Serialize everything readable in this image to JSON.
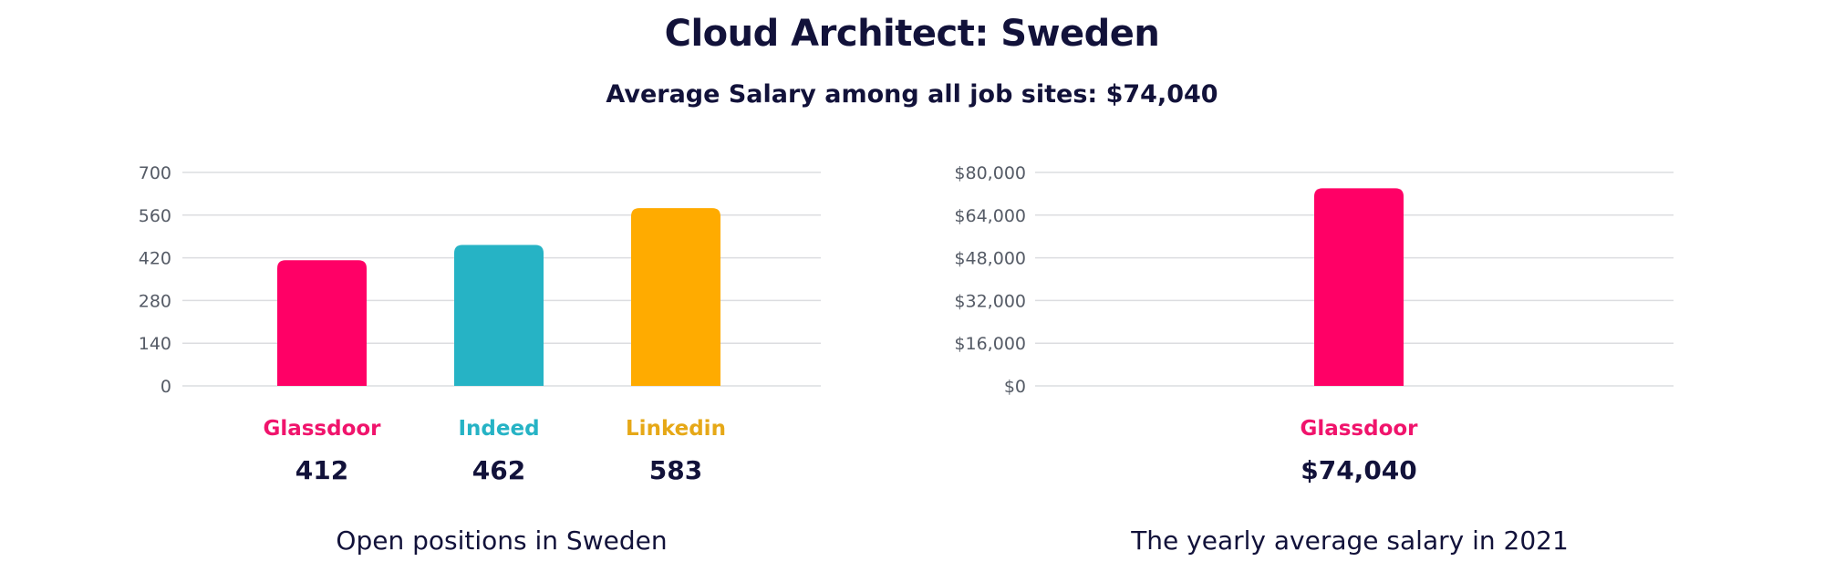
{
  "title": "Cloud Architect: Sweden",
  "subtitle": "Average Salary among all job sites: $74,040",
  "chart_data": [
    {
      "type": "bar",
      "categories": [
        "Glassdoor",
        "Indeed",
        "Linkedin"
      ],
      "values": [
        412,
        462,
        583
      ],
      "value_labels": [
        "412",
        "462",
        "583"
      ],
      "colors": [
        "#ff0066",
        "#26b3c5",
        "#ffab00"
      ],
      "label_colors": [
        "#f0146c",
        "#26b3c5",
        "#e6a817"
      ],
      "ylim": [
        0,
        700
      ],
      "yticks": [
        0,
        140,
        280,
        420,
        560,
        700
      ],
      "ytick_labels": [
        "0",
        "140",
        "280",
        "420",
        "560",
        "700"
      ],
      "grid": true,
      "caption": "Open positions in Sweden"
    },
    {
      "type": "bar",
      "categories": [
        "Glassdoor"
      ],
      "values": [
        74040
      ],
      "value_labels": [
        "$74,040"
      ],
      "colors": [
        "#ff0066"
      ],
      "label_colors": [
        "#f0146c"
      ],
      "ylim": [
        0,
        80000
      ],
      "yticks": [
        0,
        16000,
        32000,
        48000,
        64000,
        80000
      ],
      "ytick_labels": [
        "$0",
        "$16,000",
        "$32,000",
        "$48,000",
        "$64,000",
        "$80,000"
      ],
      "grid": true,
      "caption": "The yearly average salary in 2021"
    }
  ]
}
